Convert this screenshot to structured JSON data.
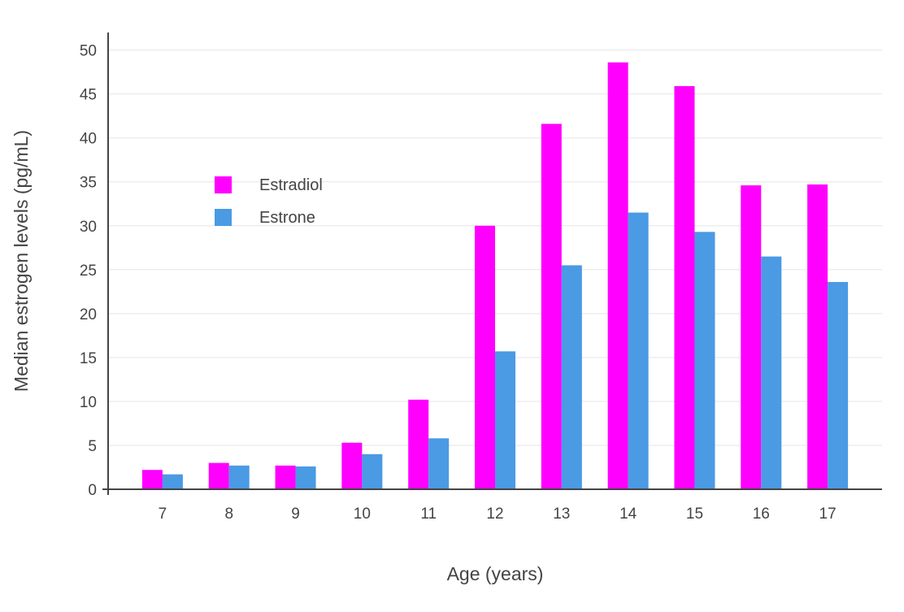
{
  "chart_data": {
    "type": "bar",
    "title": "",
    "xlabel": "Age (years)",
    "ylabel": "Median estrogen levels (pg/mL)",
    "categories": [
      "7",
      "8",
      "9",
      "10",
      "11",
      "12",
      "13",
      "14",
      "15",
      "16",
      "17"
    ],
    "series": [
      {
        "name": "Estradiol",
        "color": "#FF00FF",
        "values": [
          2.2,
          3.0,
          2.7,
          5.3,
          10.2,
          30.0,
          41.6,
          48.6,
          45.9,
          34.6,
          34.7
        ]
      },
      {
        "name": "Estrone",
        "color": "#4A9AE4",
        "values": [
          1.7,
          2.7,
          2.6,
          4.0,
          5.8,
          15.7,
          25.5,
          31.5,
          29.3,
          26.5,
          23.6
        ]
      }
    ],
    "ylim": [
      0,
      52
    ],
    "yticks": [
      0,
      5,
      10,
      15,
      20,
      25,
      30,
      35,
      40,
      45,
      50
    ],
    "grid": true,
    "legend_position": "inside-top-left",
    "style": {
      "grid_color": "#E5E5E5",
      "axis_color": "#444444",
      "text_color": "#444444",
      "background": "#FFFFFF"
    }
  }
}
